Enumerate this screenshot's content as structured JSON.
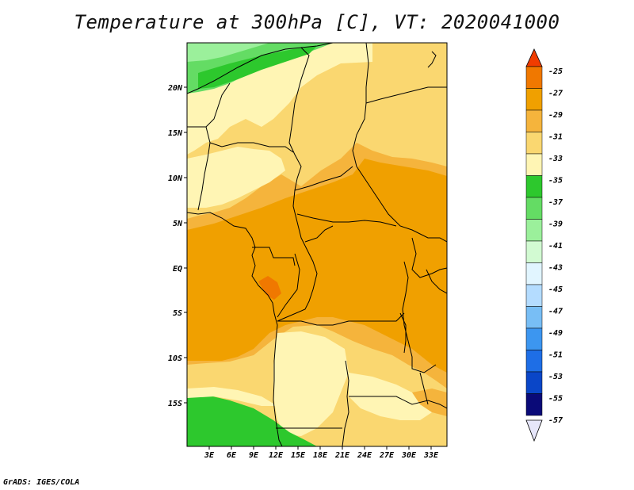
{
  "title": "Temperature at 300hPa [C], VT: 2020041000",
  "credit": "GrADS: IGES/COLA",
  "map": {
    "lon_labels": [
      "3E",
      "6E",
      "9E",
      "12E",
      "15E",
      "18E",
      "21E",
      "24E",
      "27E",
      "30E",
      "33E"
    ],
    "lat_labels": [
      "20N",
      "15N",
      "10N",
      "5N",
      "EQ",
      "5S",
      "10S",
      "15S"
    ]
  },
  "colorbar": {
    "labels": [
      "-25",
      "-27",
      "-29",
      "-31",
      "-33",
      "-35",
      "-37",
      "-39",
      "-41",
      "-43",
      "-45",
      "-47",
      "-49",
      "-51",
      "-53",
      "-55",
      "-57"
    ],
    "colors": [
      "#f03c00",
      "#f07800",
      "#f0a000",
      "#f5b43c",
      "#fad770",
      "#fff5b4",
      "#2dc82d",
      "#64dc64",
      "#9bf09b",
      "#d2fad2",
      "#e1f5ff",
      "#b4dcff",
      "#78bef5",
      "#3c96f0",
      "#1e6ee6",
      "#0a46c8",
      "#0a0a78"
    ]
  }
}
